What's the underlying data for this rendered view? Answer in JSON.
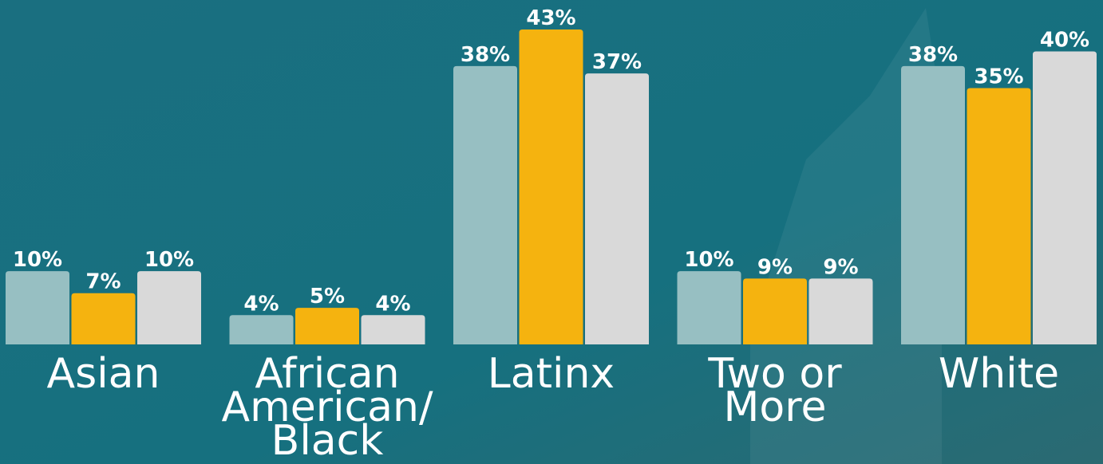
{
  "chart_data": {
    "type": "bar",
    "categories": [
      "Asian",
      "African American/ Black",
      "Latinx",
      "Two or More",
      "White"
    ],
    "series": [
      {
        "color": "#97bfc2",
        "values": [
          10,
          4,
          38,
          10,
          38
        ],
        "value_labels": [
          "10%",
          "4%",
          "38%",
          "10%",
          "38%"
        ]
      },
      {
        "color": "#f5b30f",
        "values": [
          7,
          5,
          43,
          9,
          35
        ],
        "value_labels": [
          "7%",
          "5%",
          "43%",
          "9%",
          "35%"
        ]
      },
      {
        "color": "#d9d9d9",
        "values": [
          10,
          4,
          37,
          9,
          40
        ],
        "value_labels": [
          "10%",
          "4%",
          "37%",
          "9%",
          "40%"
        ]
      }
    ]
  }
}
